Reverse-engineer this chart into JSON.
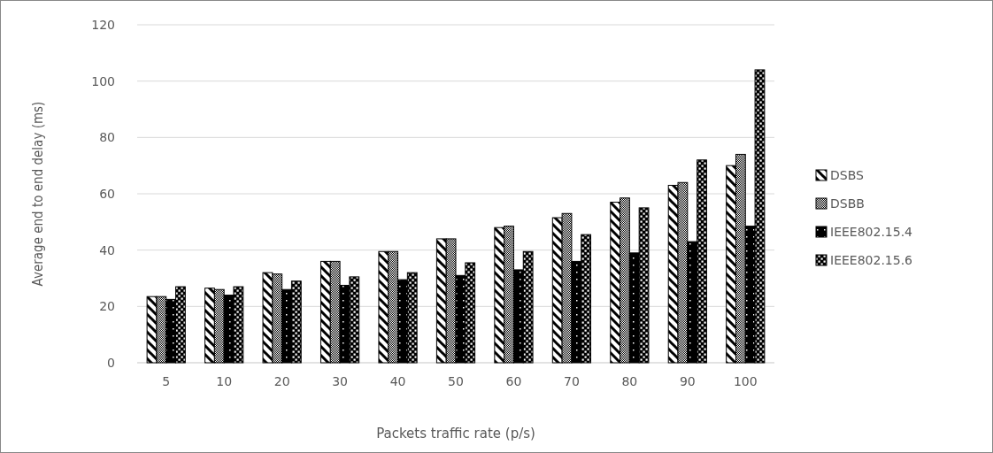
{
  "chart_data": {
    "type": "bar",
    "xlabel": "Packets traffic rate (p/s)",
    "ylabel": "Average end to end delay (ms)",
    "categories": [
      "5",
      "10",
      "20",
      "30",
      "40",
      "50",
      "60",
      "70",
      "80",
      "90",
      "100"
    ],
    "series": [
      {
        "name": "DSBS",
        "color": "#000000",
        "values": [
          23.5,
          26.5,
          32,
          36,
          39.5,
          44,
          48,
          51.5,
          57,
          63,
          70
        ]
      },
      {
        "name": "DSBB",
        "color": "#000000",
        "values": [
          23.5,
          26,
          31.5,
          36,
          39.5,
          44,
          48.5,
          53,
          58.5,
          64,
          74
        ]
      },
      {
        "name": "IEEE802.15.4",
        "color": "#000000",
        "values": [
          22.5,
          24,
          26,
          27.5,
          29.5,
          31,
          33,
          36,
          39,
          43,
          48.5
        ]
      },
      {
        "name": "IEEE802.15.6",
        "color": "#000000",
        "values": [
          27,
          27,
          29,
          30.5,
          32,
          35.5,
          39.5,
          45.5,
          55,
          72,
          104
        ]
      }
    ],
    "ylim": [
      0,
      120
    ],
    "yticks": [
      0,
      20,
      40,
      60,
      80,
      100,
      120
    ],
    "grid": "y",
    "legend": "right"
  }
}
